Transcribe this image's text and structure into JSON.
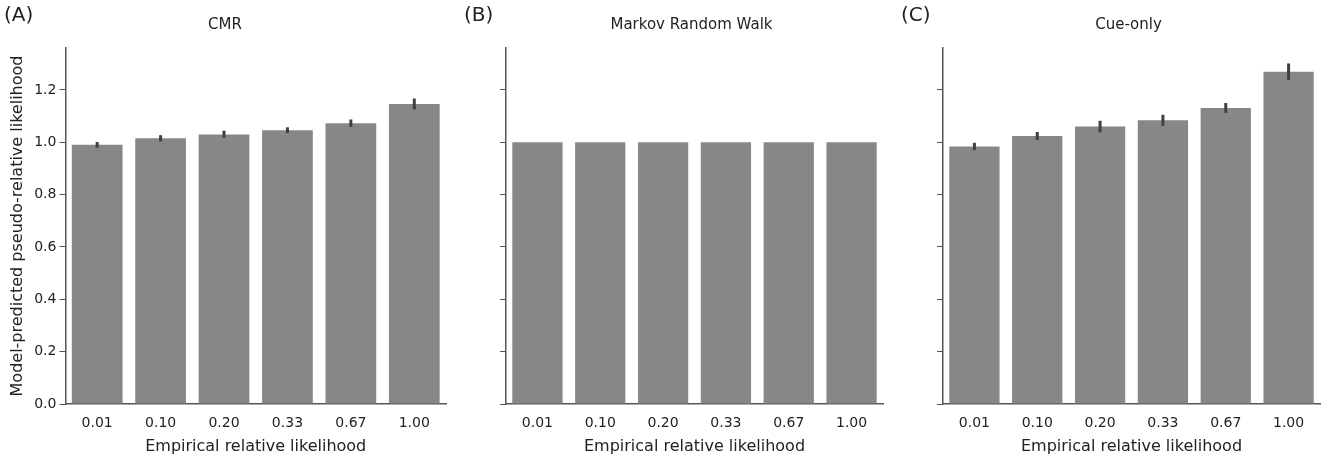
{
  "chart_data": [
    {
      "type": "bar",
      "title": "CMR",
      "xlabel": "Empirical relative likelihood",
      "ylabel": "Model-predicted pseudo-relative likelihood",
      "annotations": [
        "(A)"
      ],
      "categories": [
        "0.01",
        "0.10",
        "0.20",
        "0.33",
        "0.67",
        "1.00"
      ],
      "values": [
        0.99,
        1.015,
        1.03,
        1.046,
        1.073,
        1.146
      ],
      "errors": [
        0.011,
        0.012,
        0.014,
        0.011,
        0.014,
        0.021
      ],
      "color": "#878787",
      "ylim": [
        0,
        1.36
      ],
      "yticks": [
        {
          "value": 0,
          "label": "0.0"
        },
        0.2,
        0.4,
        0.6,
        0.8,
        {
          "value": 1,
          "label": "1.0"
        },
        1.2
      ],
      "grid": false
    },
    {
      "type": "bar",
      "title": "Markov Random Walk",
      "xlabel": "Empirical relative likelihood",
      "annotations": [
        "(B)"
      ],
      "categories": [
        "0.01",
        "0.10",
        "0.20",
        "0.33",
        "0.67",
        "1.00"
      ],
      "values": [
        1,
        1,
        1,
        1,
        1,
        1
      ],
      "color": "#878787",
      "ylim": [
        0,
        1.36
      ],
      "yticks": [
        0,
        0.2,
        0.4,
        0.6,
        0.8,
        1,
        1.2
      ],
      "grid": false,
      "tick_labels": "x"
    },
    {
      "type": "bar",
      "title": "Cue-only",
      "xlabel": "Empirical relative likelihood",
      "annotations": [
        "(C)"
      ],
      "categories": [
        "0.01",
        "0.10",
        "0.20",
        "0.33",
        "0.67",
        "1.00"
      ],
      "values": [
        0.984,
        1.024,
        1.06,
        1.084,
        1.131,
        1.269
      ],
      "errors": [
        0.014,
        0.015,
        0.022,
        0.021,
        0.019,
        0.032
      ],
      "color": "#878787",
      "ylim": [
        0,
        1.36
      ],
      "yticks": [
        0,
        0.2,
        0.4,
        0.6,
        0.8,
        1,
        1.2
      ],
      "grid": false,
      "tick_labels": "x"
    }
  ]
}
